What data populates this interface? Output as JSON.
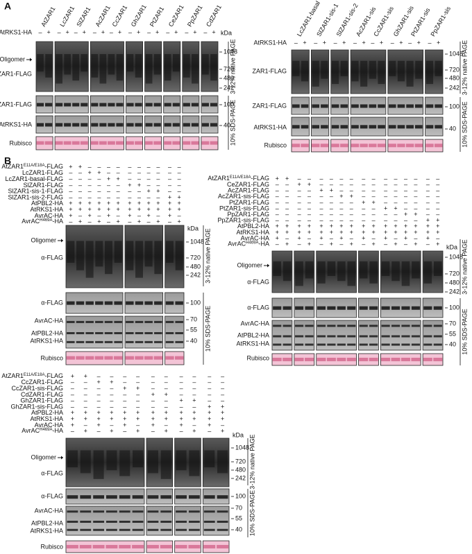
{
  "panel_a": {
    "label": "A",
    "left": {
      "samples": [
        "AtZAR1",
        "LcZAR1",
        "SlZAR1",
        "AcZAR1",
        "CcZAR1",
        "GhZAR1",
        "PtZAR1",
        "CeZAR1",
        "PpZAR1",
        "CdZAR1"
      ],
      "conditions": [
        {
          "label": "AtRKS1-HA",
          "signs": [
            "–",
            "+",
            "–",
            "+",
            "–",
            "+",
            "–",
            "+",
            "–",
            "+",
            "–",
            "+",
            "–",
            "+",
            "–",
            "+",
            "–",
            "+",
            "–",
            "+"
          ]
        }
      ],
      "row_labels": [
        "Oligomer",
        "ZAR1-FLAG",
        "ZAR1-FLAG",
        "AtRKS1-HA",
        "Rubisco"
      ],
      "marker_unit": "kDa",
      "markers": [
        1048,
        720,
        480,
        242,
        100,
        40
      ],
      "gels": [
        "3-12% native PAGE",
        "10% SDS-PAGE"
      ]
    },
    "right": {
      "samples": [
        "LcZAR1-basal",
        "SlZAR1-sis-1",
        "SlZAR1-sis-2",
        "AcZAR1-sis",
        "CcZAR1-sis",
        "GhZAR1-sis",
        "PtZAR1-sis",
        "PpZAR1-sis"
      ],
      "conditions": [
        {
          "label": "AtRKS1-HA",
          "signs": [
            "–",
            "+",
            "–",
            "+",
            "–",
            "+",
            "–",
            "+",
            "–",
            "+",
            "–",
            "+",
            "–",
            "+",
            "–",
            "+"
          ]
        }
      ],
      "row_labels": [
        "ZAR1-FLAG",
        "ZAR1-FLAG",
        "AtRKS1-HA",
        "Rubisco"
      ],
      "markers": [
        1048,
        720,
        480,
        242,
        100,
        40
      ],
      "gels": [
        "3-12% native PAGE",
        "10% SDS-PAGE"
      ]
    }
  },
  "panel_b": {
    "label": "B",
    "left": {
      "conditions": [
        {
          "label": {
            "name": "AtZAR1",
            "sup": "E11A/E18A",
            "suffix": "-FLAG"
          },
          "signs": [
            "+",
            "+",
            "–",
            "–",
            "–",
            "–",
            "–",
            "–",
            "–",
            "–",
            "–",
            "–"
          ]
        },
        {
          "label": "LcZAR1-FLAG",
          "signs": [
            "–",
            "–",
            "+",
            "+",
            "–",
            "–",
            "–",
            "–",
            "–",
            "–",
            "–",
            "–"
          ]
        },
        {
          "label": "LcZAR1-basal-FLAG",
          "signs": [
            "–",
            "–",
            "–",
            "–",
            "+",
            "+",
            "–",
            "–",
            "–",
            "–",
            "–",
            "–"
          ]
        },
        {
          "label": "SlZAR1-FLAG",
          "signs": [
            "–",
            "–",
            "–",
            "–",
            "–",
            "–",
            "+",
            "+",
            "–",
            "–",
            "–",
            "–"
          ]
        },
        {
          "label": "SlZAR1-sis-1-FLAG",
          "signs": [
            "–",
            "–",
            "–",
            "–",
            "–",
            "–",
            "–",
            "–",
            "+",
            "+",
            "–",
            "–"
          ]
        },
        {
          "label": "SlZAR1-sis-2-FLAG",
          "signs": [
            "–",
            "–",
            "–",
            "–",
            "–",
            "–",
            "–",
            "–",
            "–",
            "–",
            "+",
            "+"
          ]
        },
        {
          "label": "AtPBL2-HA",
          "signs": [
            "+",
            "+",
            "+",
            "+",
            "+",
            "+",
            "+",
            "+",
            "+",
            "+",
            "+",
            "+"
          ]
        },
        {
          "label": "AtRKS1-HA",
          "signs": [
            "+",
            "+",
            "+",
            "+",
            "+",
            "+",
            "+",
            "+",
            "+",
            "+",
            "+",
            "+"
          ]
        },
        {
          "label": "AvrAC-HA",
          "signs": [
            "+",
            "–",
            "+",
            "–",
            "+",
            "–",
            "+",
            "–",
            "+",
            "–",
            "+",
            "–"
          ]
        },
        {
          "label": {
            "name": "AvrAC",
            "sup": "H469A",
            "suffix": "-HA"
          },
          "signs": [
            "–",
            "+",
            "–",
            "+",
            "–",
            "+",
            "–",
            "+",
            "–",
            "+",
            "–",
            "+"
          ]
        }
      ],
      "row_labels": [
        "Oligomer",
        "α-FLAG",
        "α-FLAG",
        "AvrAC-HA",
        "AtPBL2-HA",
        "AtRKS1-HA",
        "Rubisco"
      ],
      "marker_unit": "kDa",
      "markers": [
        1048,
        720,
        480,
        242,
        100,
        70,
        55,
        40
      ],
      "gels": [
        "3-12% native PAGE",
        "10% SDS-PAGE"
      ]
    },
    "right": {
      "conditions": [
        {
          "label": {
            "name": "AtZAR1",
            "sup": "E11A/E18A",
            "suffix": "-FLAG"
          },
          "signs": [
            "+",
            "+",
            "–",
            "–",
            "–",
            "–",
            "–",
            "–",
            "–",
            "–",
            "–",
            "–",
            "–",
            "–",
            "–",
            "–"
          ]
        },
        {
          "label": "CeZAR1-FLAG",
          "signs": [
            "–",
            "–",
            "+",
            "+",
            "–",
            "–",
            "–",
            "–",
            "–",
            "–",
            "–",
            "–",
            "–",
            "–",
            "–",
            "–"
          ]
        },
        {
          "label": "AcZAR1-FLAG",
          "signs": [
            "–",
            "–",
            "–",
            "–",
            "+",
            "+",
            "–",
            "–",
            "–",
            "–",
            "–",
            "–",
            "–",
            "–",
            "–",
            "–"
          ]
        },
        {
          "label": "AcZAR1-sis-FLAG",
          "signs": [
            "–",
            "–",
            "–",
            "–",
            "–",
            "–",
            "+",
            "+",
            "–",
            "–",
            "–",
            "–",
            "–",
            "–",
            "–",
            "–"
          ]
        },
        {
          "label": "PtZAR1-FLAG",
          "signs": [
            "–",
            "–",
            "–",
            "–",
            "–",
            "–",
            "–",
            "–",
            "+",
            "+",
            "–",
            "–",
            "–",
            "–",
            "–",
            "–"
          ]
        },
        {
          "label": "PtZAR1-sis-FLAG",
          "signs": [
            "–",
            "–",
            "–",
            "–",
            "–",
            "–",
            "–",
            "–",
            "–",
            "–",
            "+",
            "+",
            "–",
            "–",
            "–",
            "–"
          ]
        },
        {
          "label": "PpZAR1-FLAG",
          "signs": [
            "–",
            "–",
            "–",
            "–",
            "–",
            "–",
            "–",
            "–",
            "–",
            "–",
            "–",
            "–",
            "+",
            "+",
            "–",
            "–"
          ]
        },
        {
          "label": "PpZAR1-sis-FLAG",
          "signs": [
            "–",
            "–",
            "–",
            "–",
            "–",
            "–",
            "–",
            "–",
            "–",
            "–",
            "–",
            "–",
            "–",
            "–",
            "+",
            "+"
          ]
        },
        {
          "label": "AtPBL2-HA",
          "signs": [
            "+",
            "+",
            "+",
            "+",
            "+",
            "+",
            "+",
            "+",
            "+",
            "+",
            "+",
            "+",
            "+",
            "+",
            "+",
            "+"
          ]
        },
        {
          "label": "AtRKS1-HA",
          "signs": [
            "+",
            "+",
            "+",
            "+",
            "+",
            "+",
            "+",
            "+",
            "+",
            "+",
            "+",
            "+",
            "+",
            "+",
            "+",
            "+"
          ]
        },
        {
          "label": "AvrAC-HA",
          "signs": [
            "+",
            "–",
            "+",
            "–",
            "+",
            "–",
            "+",
            "–",
            "+",
            "–",
            "+",
            "–",
            "+",
            "–",
            "+",
            "–"
          ]
        },
        {
          "label": {
            "name": "AvrAC",
            "sup": "H469A",
            "suffix": "-HA"
          },
          "signs": [
            "–",
            "+",
            "–",
            "+",
            "–",
            "+",
            "–",
            "+",
            "–",
            "+",
            "–",
            "+",
            "–",
            "+",
            "–",
            "+"
          ]
        }
      ],
      "row_labels": [
        "Oligomer",
        "α-FLAG",
        "α-FLAG",
        "AvrAC-HA",
        "AtPBL2-HA",
        "AtRKS1-HA",
        "Rubisco"
      ],
      "marker_unit": "kDa",
      "markers": [
        1048,
        720,
        480,
        242,
        100,
        70,
        55,
        40
      ],
      "gels": [
        "3-12% native PAGE",
        "10% SDS-PAGE"
      ]
    },
    "bottom": {
      "conditions": [
        {
          "label": {
            "name": "AtZAR1",
            "sup": "E11A/E18A",
            "suffix": "-FLAG"
          },
          "signs": [
            "+",
            "+",
            "–",
            "–",
            "–",
            "–",
            "–",
            "–",
            "–",
            "–",
            "–",
            "–"
          ]
        },
        {
          "label": "CcZAR1-FLAG",
          "signs": [
            "–",
            "–",
            "+",
            "+",
            "–",
            "–",
            "–",
            "–",
            "–",
            "–",
            "–",
            "–"
          ]
        },
        {
          "label": "CcZAR1-sis-FLAG",
          "signs": [
            "–",
            "–",
            "–",
            "–",
            "+",
            "+",
            "–",
            "–",
            "–",
            "–",
            "–",
            "–"
          ]
        },
        {
          "label": "CdZAR1-FLAG",
          "signs": [
            "–",
            "–",
            "–",
            "–",
            "–",
            "–",
            "+",
            "+",
            "–",
            "–",
            "–",
            "–"
          ]
        },
        {
          "label": "GhZAR1-FLAG",
          "signs": [
            "–",
            "–",
            "–",
            "–",
            "–",
            "–",
            "–",
            "–",
            "+",
            "+",
            "–",
            "–"
          ]
        },
        {
          "label": "GhZAR1-sis-FLAG",
          "signs": [
            "–",
            "–",
            "–",
            "–",
            "–",
            "–",
            "–",
            "–",
            "–",
            "–",
            "+",
            "+"
          ]
        },
        {
          "label": "AtPBL2-HA",
          "signs": [
            "+",
            "+",
            "+",
            "+",
            "+",
            "+",
            "+",
            "+",
            "+",
            "+",
            "+",
            "+"
          ]
        },
        {
          "label": "AtRKS1-HA",
          "signs": [
            "+",
            "+",
            "+",
            "+",
            "+",
            "+",
            "+",
            "+",
            "+",
            "+",
            "+",
            "+"
          ]
        },
        {
          "label": "AvrAC-HA",
          "signs": [
            "+",
            "–",
            "+",
            "–",
            "+",
            "–",
            "+",
            "–",
            "+",
            "–",
            "+",
            "–"
          ]
        },
        {
          "label": {
            "name": "AvrAC",
            "sup": "H469A",
            "suffix": "-HA"
          },
          "signs": [
            "–",
            "+",
            "–",
            "+",
            "–",
            "+",
            "–",
            "+",
            "–",
            "+",
            "–",
            "+"
          ]
        }
      ],
      "row_labels": [
        "Oligomer",
        "α-FLAG",
        "α-FLAG",
        "AvrAC-HA",
        "AtPBL2-HA",
        "AtRKS1-HA",
        "Rubisco"
      ],
      "marker_unit": "kDa",
      "markers": [
        1048,
        720,
        480,
        242,
        100,
        70,
        55,
        40
      ],
      "gels": [
        "3-12% native PAGE",
        "10% SDS-PAGE"
      ]
    }
  }
}
